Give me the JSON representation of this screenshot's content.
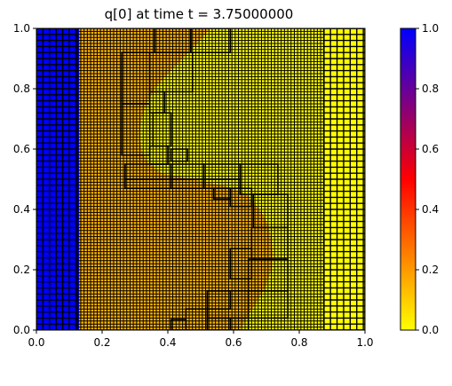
{
  "chart_data": {
    "type": "heatmap",
    "title": "q[0] at time t =      3.75000000",
    "xlabel": "",
    "ylabel": "",
    "xlim": [
      0.0,
      1.0
    ],
    "ylim": [
      0.0,
      1.0
    ],
    "x_ticks": [
      "0.0",
      "0.2",
      "0.4",
      "0.6",
      "0.8",
      "1.0"
    ],
    "y_ticks": [
      "0.0",
      "0.2",
      "0.4",
      "0.6",
      "0.8",
      "1.0"
    ],
    "colorbar": {
      "range": [
        0.0,
        1.0
      ],
      "ticks": [
        "0.0",
        "0.2",
        "0.4",
        "0.6",
        "0.8",
        "1.0"
      ],
      "colors": [
        "#ffff00",
        "#ff8000",
        "#ff0000",
        "#800080",
        "#0000ff"
      ]
    },
    "field": {
      "left_value": 1.0,
      "right_value": 0.0,
      "interface_x_at_y": [
        [
          0.0,
          0.6
        ],
        [
          0.05,
          0.625
        ],
        [
          0.1,
          0.655
        ],
        [
          0.15,
          0.68
        ],
        [
          0.2,
          0.695
        ],
        [
          0.25,
          0.7
        ],
        [
          0.3,
          0.695
        ],
        [
          0.35,
          0.685
        ],
        [
          0.4,
          0.66
        ],
        [
          0.45,
          0.62
        ],
        [
          0.47,
          0.58
        ],
        [
          0.49,
          0.5
        ],
        [
          0.505,
          0.43
        ],
        [
          0.52,
          0.36
        ],
        [
          0.56,
          0.315
        ],
        [
          0.6,
          0.3
        ],
        [
          0.65,
          0.295
        ],
        [
          0.7,
          0.3
        ],
        [
          0.75,
          0.315
        ],
        [
          0.8,
          0.34
        ],
        [
          0.85,
          0.38
        ],
        [
          0.9,
          0.425
        ],
        [
          0.95,
          0.47
        ],
        [
          1.0,
          0.51
        ]
      ],
      "blue_columns_x": [
        0.0,
        0.13
      ],
      "yellow_columns_x": [
        0.875,
        1.0
      ]
    },
    "amr_patches": [
      [
        0.0,
        0.0,
        0.125,
        1.0,
        0.02
      ],
      [
        0.875,
        0.0,
        1.0,
        1.0,
        0.02
      ],
      [
        0.125,
        0.0,
        0.875,
        1.0,
        0.01
      ],
      [
        0.36,
        0.92,
        0.47,
        1.0,
        0.0
      ],
      [
        0.47,
        0.92,
        0.59,
        1.0,
        0.0
      ],
      [
        0.345,
        0.79,
        0.475,
        0.92,
        0.0
      ],
      [
        0.26,
        0.75,
        0.345,
        0.92,
        0.0
      ],
      [
        0.345,
        0.72,
        0.39,
        0.79,
        0.0
      ],
      [
        0.26,
        0.58,
        0.345,
        0.75,
        0.0
      ],
      [
        0.355,
        0.61,
        0.41,
        0.72,
        0.0
      ],
      [
        0.345,
        0.55,
        0.4,
        0.61,
        0.0
      ],
      [
        0.41,
        0.56,
        0.46,
        0.6,
        0.0
      ],
      [
        0.27,
        0.5,
        0.41,
        0.55,
        0.0
      ],
      [
        0.41,
        0.5,
        0.51,
        0.55,
        0.0
      ],
      [
        0.51,
        0.5,
        0.62,
        0.55,
        0.0
      ],
      [
        0.62,
        0.45,
        0.735,
        0.55,
        0.0
      ],
      [
        0.27,
        0.47,
        0.41,
        0.5,
        0.0
      ],
      [
        0.41,
        0.47,
        0.51,
        0.5,
        0.0
      ],
      [
        0.51,
        0.47,
        0.62,
        0.5,
        0.0
      ],
      [
        0.54,
        0.435,
        0.59,
        0.47,
        0.0
      ],
      [
        0.59,
        0.41,
        0.655,
        0.47,
        0.0
      ],
      [
        0.66,
        0.34,
        0.765,
        0.45,
        0.0
      ],
      [
        0.655,
        0.235,
        0.765,
        0.34,
        0.0
      ],
      [
        0.645,
        0.13,
        0.765,
        0.235,
        0.0
      ],
      [
        0.59,
        0.17,
        0.655,
        0.27,
        0.0
      ],
      [
        0.645,
        0.04,
        0.765,
        0.13,
        0.0
      ],
      [
        0.52,
        0.04,
        0.645,
        0.13,
        0.0
      ],
      [
        0.52,
        0.0,
        0.59,
        0.04,
        0.0
      ],
      [
        0.59,
        0.0,
        0.645,
        0.04,
        0.0
      ],
      [
        0.455,
        0.0,
        0.52,
        0.07,
        0.0
      ],
      [
        0.41,
        0.0,
        0.455,
        0.035,
        0.0
      ],
      [
        0.52,
        0.07,
        0.59,
        0.13,
        0.0
      ]
    ]
  }
}
